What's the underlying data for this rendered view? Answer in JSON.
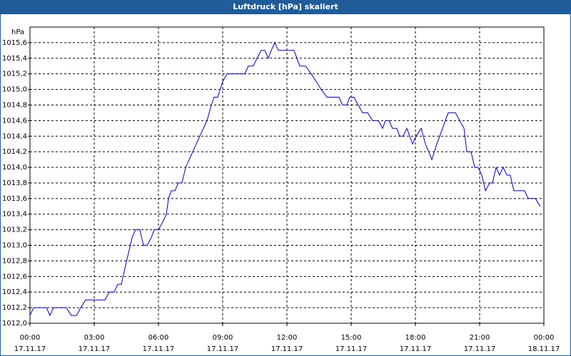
{
  "chart_data": {
    "type": "line",
    "title": "Luftdruck [hPa] skaliert",
    "y_label": "hPa",
    "x": [
      0,
      0.17,
      0.77,
      0.93,
      1.1,
      1.7,
      1.93,
      2.17,
      2.37,
      2.6,
      3.5,
      3.7,
      3.93,
      4.1,
      4.27,
      4.43,
      4.6,
      4.77,
      4.93,
      5.13,
      5.3,
      5.47,
      5.67,
      5.8,
      6.0,
      6.2,
      6.37,
      6.47,
      6.6,
      6.77,
      6.93,
      7.1,
      7.27,
      7.6,
      7.93,
      8.27,
      8.47,
      8.6,
      8.77,
      9.0,
      9.2,
      10.03,
      10.2,
      10.43,
      10.6,
      10.8,
      10.97,
      11.13,
      11.27,
      11.43,
      11.6,
      12.33,
      12.6,
      12.87,
      13.13,
      13.37,
      13.6,
      13.87,
      14.43,
      14.6,
      14.8,
      14.93,
      15.13,
      15.33,
      15.53,
      15.77,
      16.0,
      16.27,
      16.47,
      16.6,
      16.77,
      16.93,
      17.13,
      17.27,
      17.43,
      17.6,
      17.87,
      18.03,
      18.27,
      18.47,
      18.77,
      19.0,
      19.27,
      19.53,
      19.87,
      20.07,
      20.27,
      20.4,
      20.6,
      20.77,
      20.93,
      21.1,
      21.27,
      21.47,
      21.6,
      21.77,
      21.93,
      22.1,
      22.27,
      22.43,
      22.6,
      23.1,
      23.27,
      23.6,
      23.83
    ],
    "series": [
      {
        "color": "#0000b0",
        "values": [
          1012.1,
          1012.2,
          1012.2,
          1012.1,
          1012.2,
          1012.2,
          1012.1,
          1012.1,
          1012.2,
          1012.3,
          1012.3,
          1012.4,
          1012.4,
          1012.5,
          1012.5,
          1012.7,
          1012.9,
          1013.1,
          1013.2,
          1013.2,
          1013.0,
          1013.0,
          1013.1,
          1013.2,
          1013.2,
          1013.3,
          1013.4,
          1013.6,
          1013.7,
          1013.7,
          1013.8,
          1013.8,
          1014.0,
          1014.2,
          1014.4,
          1014.6,
          1014.8,
          1014.9,
          1014.9,
          1015.1,
          1015.2,
          1015.2,
          1015.3,
          1015.3,
          1015.4,
          1015.5,
          1015.5,
          1015.4,
          1015.5,
          1015.6,
          1015.5,
          1015.5,
          1015.3,
          1015.3,
          1015.2,
          1015.1,
          1015.0,
          1014.9,
          1014.9,
          1014.8,
          1014.8,
          1014.9,
          1014.9,
          1014.8,
          1014.7,
          1014.7,
          1014.6,
          1014.6,
          1014.5,
          1014.6,
          1014.6,
          1014.5,
          1014.5,
          1014.4,
          1014.4,
          1014.5,
          1014.3,
          1014.4,
          1014.5,
          1014.3,
          1014.1,
          1014.3,
          1014.5,
          1014.7,
          1014.7,
          1014.6,
          1014.5,
          1014.2,
          1014.2,
          1014.0,
          1014.0,
          1013.9,
          1013.7,
          1013.8,
          1013.8,
          1014.0,
          1013.9,
          1014.0,
          1013.9,
          1013.9,
          1013.7,
          1013.7,
          1013.6,
          1013.6,
          1013.5
        ]
      }
    ],
    "xlim": [
      0,
      24
    ],
    "xticks": [
      {
        "value": 0,
        "label": [
          "00:00",
          "17.11.17"
        ]
      },
      {
        "value": 3,
        "label": [
          "03:00",
          "17.11.17"
        ]
      },
      {
        "value": 6,
        "label": [
          "06:00",
          "17.11.17"
        ]
      },
      {
        "value": 9,
        "label": [
          "09:00",
          "17.11.17"
        ]
      },
      {
        "value": 12,
        "label": [
          "12:00",
          "17.11.17"
        ]
      },
      {
        "value": 15,
        "label": [
          "15:00",
          "17.11.17"
        ]
      },
      {
        "value": 18,
        "label": [
          "18:00",
          "17.11.17"
        ]
      },
      {
        "value": 21,
        "label": [
          "21:00",
          "17.11.17"
        ]
      },
      {
        "value": 24,
        "label": [
          "00:00",
          "18.11.17"
        ]
      }
    ],
    "ylim": [
      1012.0,
      1015.8
    ],
    "yticks": [
      {
        "value": 1012.0,
        "label": "1012,0"
      },
      {
        "value": 1012.2,
        "label": "1012,2"
      },
      {
        "value": 1012.4,
        "label": "1012,4"
      },
      {
        "value": 1012.6,
        "label": "1012,6"
      },
      {
        "value": 1012.8,
        "label": "1012,8"
      },
      {
        "value": 1013.0,
        "label": "1013,0"
      },
      {
        "value": 1013.2,
        "label": "1013,2"
      },
      {
        "value": 1013.4,
        "label": "1013,4"
      },
      {
        "value": 1013.6,
        "label": "1013,6"
      },
      {
        "value": 1013.8,
        "label": "1013,8"
      },
      {
        "value": 1014.0,
        "label": "1014,0"
      },
      {
        "value": 1014.2,
        "label": "1014,2"
      },
      {
        "value": 1014.4,
        "label": "1014,4"
      },
      {
        "value": 1014.6,
        "label": "1014,6"
      },
      {
        "value": 1014.8,
        "label": "1014,8"
      },
      {
        "value": 1015.0,
        "label": "1015,0"
      },
      {
        "value": 1015.2,
        "label": "1015,2"
      },
      {
        "value": 1015.4,
        "label": "1015,4"
      },
      {
        "value": 1015.6,
        "label": "1015,6"
      }
    ],
    "grid": true
  }
}
